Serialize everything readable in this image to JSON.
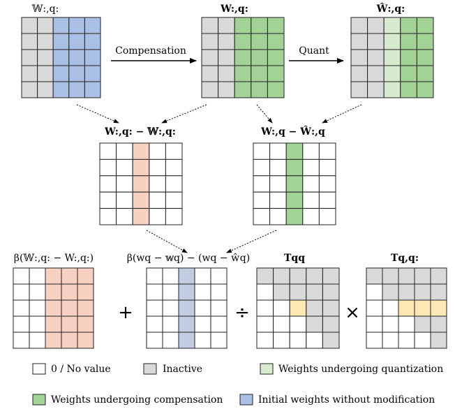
{
  "colors": {
    "white": "#ffffff",
    "inactive": "#d9d9d9",
    "quant": "#d8ead0",
    "comp": "#a3d296",
    "init": "#a9bfe3",
    "diff_red": "#f7d2c3",
    "diff_blue": "#c2cde2",
    "highlight": "#fde7b5",
    "grid_line": "#222222"
  },
  "top": {
    "m1_label": "𝕎:,q:",
    "m2_label": "W:,q:",
    "m3_label": "Ŵ:,q:",
    "arrow1_label": "Compensation",
    "arrow2_label": "Quant"
  },
  "middle": {
    "d1_label": "W:,q: − 𝕎:,q:",
    "d2_label": "W:,q − Ŵ:,q"
  },
  "bottom": {
    "b1_label": "β(𝕎:,q: − W:,q:)",
    "b2_label": "β(wq − 𝕨q) − (wq − ŵq)",
    "b3_label": "Tqq",
    "b4_label": "Tq,q:",
    "op_plus": "+",
    "op_div": "÷",
    "op_times": "×"
  },
  "legend": [
    {
      "label": "0 / No value",
      "color": "#ffffff"
    },
    {
      "label": "Inactive",
      "color": "#d9d9d9"
    },
    {
      "label": "Weights undergoing quantization",
      "color": "#d8ead0"
    },
    {
      "label": "Weights undergoing compensation",
      "color": "#a3d296"
    },
    {
      "label": "Initial weights without modification",
      "color": "#a9bfe3"
    }
  ]
}
